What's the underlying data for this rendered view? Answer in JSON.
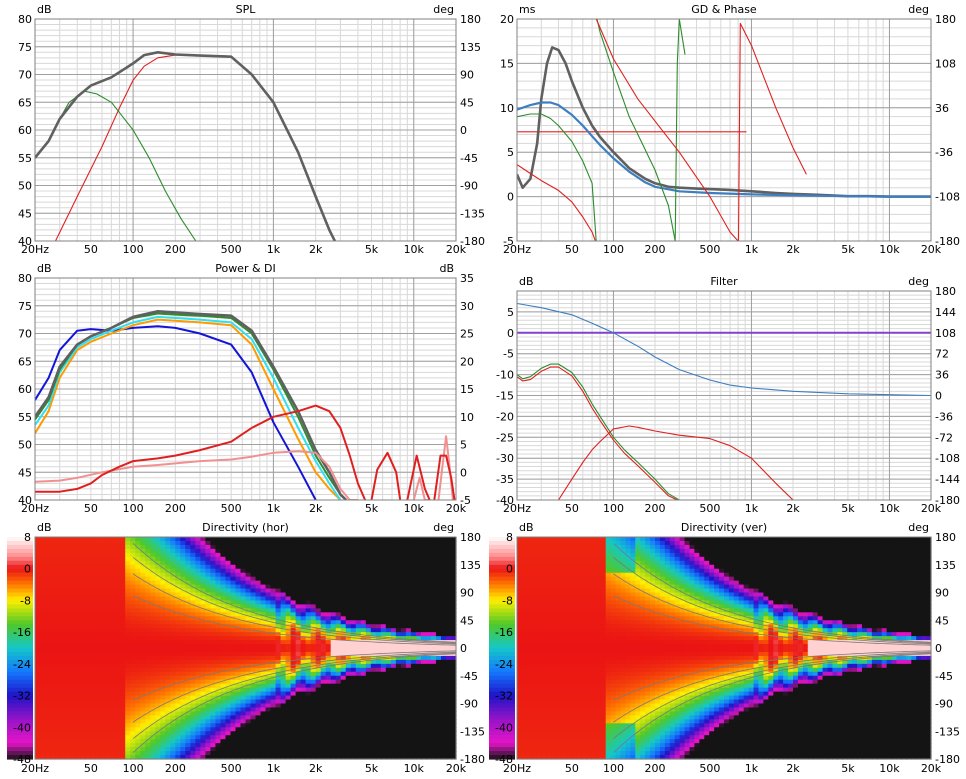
{
  "colors": {
    "background": "#ffffff",
    "grid_major": "#a0a0a0",
    "grid_minor": "#d8d8d8",
    "dark": "#606060",
    "red": "#e02020",
    "green": "#2e8b2e",
    "blue": "#1414d8",
    "steelblue": "#3c7ec0",
    "cyan": "#30e0f0",
    "orange": "#ff9a00",
    "salmon": "#f09090",
    "purple": "#8040d0"
  },
  "x_ticks": [
    "20Hz",
    "50",
    "100",
    "200",
    "500",
    "1k",
    "2k",
    "5k",
    "10k",
    "20k"
  ],
  "chart_data": [
    {
      "id": "spl",
      "type": "line",
      "title": "SPL",
      "ylabel": "dB",
      "y2label": "deg",
      "xlim": [
        20,
        20000
      ],
      "ylim": [
        40,
        80
      ],
      "y2lim": [
        -180,
        180
      ],
      "yticks": [
        "80",
        "75",
        "70",
        "65",
        "60",
        "55",
        "50",
        "45",
        "40"
      ],
      "y2ticks": [
        "180",
        "135",
        "90",
        "45",
        "0",
        "-45",
        "-90",
        "-135",
        "-180"
      ],
      "series": [
        {
          "color": "#e02020",
          "x": [
            28,
            40,
            60,
            80,
            100,
            120,
            150,
            200,
            300,
            500,
            700,
            1000,
            1500,
            2000,
            2500,
            3000
          ],
          "y": [
            40,
            48,
            57,
            64,
            69,
            71.5,
            73,
            73.5,
            73.5,
            73.3,
            70,
            65,
            56,
            48,
            42,
            38
          ]
        },
        {
          "color": "#2e8b2e",
          "x": [
            20,
            25,
            30,
            35,
            45,
            55,
            70,
            100,
            130,
            170,
            220,
            280
          ],
          "y": [
            55,
            58,
            62,
            65,
            67,
            66.5,
            65,
            60,
            55,
            49,
            44,
            40
          ]
        },
        {
          "color": "#606060",
          "x": [
            20,
            25,
            30,
            40,
            50,
            70,
            100,
            120,
            150,
            200,
            300,
            500,
            700,
            1000,
            1500,
            2000,
            2500,
            3000
          ],
          "y": [
            55,
            58,
            62,
            66,
            68,
            69.5,
            72,
            73.5,
            74,
            73.6,
            73.4,
            73.2,
            70,
            65,
            56,
            48,
            42,
            38
          ]
        }
      ]
    },
    {
      "id": "gd",
      "type": "line",
      "title": "GD & Phase",
      "ylabel": "ms",
      "y2label": "deg",
      "xlim": [
        20,
        20000
      ],
      "ylim": [
        -5,
        20
      ],
      "y2lim": [
        -180,
        180
      ],
      "yticks": [
        "20",
        "15",
        "10",
        "5",
        "0",
        "-5"
      ],
      "y2ticks": [
        "180",
        "108",
        "36",
        "-36",
        "-108",
        "-180"
      ],
      "series": [
        {
          "color": "#e02020",
          "x": [
            20,
            920
          ],
          "y": [
            7.3,
            7.3
          ]
        },
        {
          "color": "#606060",
          "x": [
            20,
            22,
            25,
            28,
            30,
            33,
            36,
            40,
            45,
            50,
            60,
            70,
            80,
            100,
            130,
            170,
            200,
            250,
            300,
            400,
            500,
            700,
            1000,
            1500,
            2000,
            3000,
            5000,
            7000,
            10000,
            20000
          ],
          "y": [
            2.5,
            1,
            2,
            6,
            11,
            15,
            16.8,
            16.5,
            15,
            13,
            10,
            8,
            6.7,
            5,
            3.2,
            2,
            1.5,
            1.1,
            1,
            0.9,
            0.85,
            0.75,
            0.6,
            0.4,
            0.3,
            0.2,
            0.05,
            0.05,
            0,
            0
          ]
        },
        {
          "color": "#3c7ec0",
          "x": [
            20,
            25,
            30,
            35,
            40,
            50,
            60,
            70,
            80,
            100,
            130,
            170,
            200,
            300,
            500,
            1000,
            2000,
            5000,
            10000,
            20000
          ],
          "y": [
            9.8,
            10.3,
            10.6,
            10.6,
            10.3,
            9.2,
            8,
            6.8,
            5.8,
            4.3,
            2.8,
            1.6,
            1.1,
            0.6,
            0.4,
            0.25,
            0.15,
            0.05,
            0,
            0
          ]
        },
        {
          "color": "#2e8b2e",
          "x": [
            20,
            25,
            30,
            35,
            40,
            50,
            60,
            70,
            75
          ],
          "y": [
            9,
            9.3,
            9.3,
            8.8,
            8,
            6.2,
            4,
            1.5,
            -5
          ]
        },
        {
          "color": "#2e8b2e",
          "x": [
            76,
            80,
            100,
            130,
            150,
            200,
            250,
            280
          ],
          "y": [
            20,
            18.5,
            14,
            9,
            7,
            3,
            -1,
            -5
          ]
        },
        {
          "color": "#2e8b2e",
          "x": [
            280,
            290,
            300,
            330
          ],
          "y": [
            -5,
            15,
            20,
            16
          ]
        },
        {
          "color": "#e02020",
          "x": [
            20,
            25,
            30,
            40,
            50,
            60,
            70,
            74
          ],
          "y": [
            3.6,
            2.6,
            1.8,
            0.7,
            -0.6,
            -2.3,
            -4,
            -5
          ]
        },
        {
          "color": "#e02020",
          "x": [
            75,
            80,
            100,
            150,
            200,
            300,
            500,
            700,
            800
          ],
          "y": [
            20,
            19,
            15.5,
            11,
            8.5,
            5,
            0,
            -4,
            -5
          ]
        },
        {
          "color": "#e02020",
          "x": [
            805,
            830,
            1000,
            1500,
            2000,
            2500
          ],
          "y": [
            -5,
            19.5,
            17,
            10,
            5.5,
            2.5
          ]
        }
      ]
    },
    {
      "id": "power",
      "type": "line",
      "title": "Power & DI",
      "ylabel": "dB",
      "y2label": "dB",
      "xlim": [
        20,
        20000
      ],
      "ylim": [
        40,
        80
      ],
      "y2lim": [
        -5,
        35
      ],
      "yticks": [
        "80",
        "75",
        "70",
        "65",
        "60",
        "55",
        "50",
        "45",
        "40"
      ],
      "y2ticks": [
        "35",
        "30",
        "25",
        "20",
        "15",
        "10",
        "5",
        "0",
        "-5"
      ],
      "series": [
        {
          "color": "#1414d8",
          "x": [
            20,
            25,
            30,
            40,
            50,
            70,
            100,
            150,
            200,
            300,
            500,
            700,
            1000,
            1500,
            2000
          ],
          "y": [
            58,
            62,
            67,
            70.5,
            70.8,
            70.5,
            71,
            71.3,
            71,
            70,
            68,
            63,
            54,
            46,
            40
          ]
        },
        {
          "color": "#ff9a00",
          "x": [
            20,
            25,
            30,
            40,
            50,
            70,
            100,
            150,
            200,
            300,
            500,
            700,
            1000,
            1500,
            2000,
            2500,
            3000
          ],
          "y": [
            52,
            56,
            62,
            67,
            68.5,
            70,
            71.5,
            72.5,
            72.3,
            72,
            71.5,
            68,
            60,
            51,
            45,
            42,
            40
          ]
        },
        {
          "color": "#30e0f0",
          "x": [
            20,
            25,
            30,
            40,
            50,
            70,
            100,
            150,
            200,
            300,
            500,
            700,
            1000,
            1500,
            2000,
            2500,
            3000
          ],
          "y": [
            53.5,
            57,
            63,
            67.5,
            69,
            70.5,
            72,
            73,
            72.8,
            72.5,
            72,
            69,
            62,
            53,
            47,
            43,
            40
          ]
        },
        {
          "color": "#2e8b2e",
          "x": [
            20,
            25,
            30,
            40,
            50,
            70,
            100,
            150,
            200,
            300,
            500,
            700,
            1000,
            1500,
            2000,
            2500,
            3000,
            3300
          ],
          "y": [
            54.5,
            58,
            63.5,
            68,
            69.5,
            71,
            72.8,
            73.6,
            73.4,
            73.2,
            72.8,
            70,
            63.5,
            55,
            48,
            44,
            41,
            40
          ]
        },
        {
          "color": "#606060",
          "x": [
            20,
            25,
            30,
            40,
            50,
            70,
            100,
            150,
            200,
            300,
            500,
            700,
            1000,
            1500,
            2000,
            2500,
            3000,
            3300
          ],
          "y": [
            55,
            58.5,
            64,
            68,
            69.5,
            71,
            73,
            74,
            73.8,
            73.5,
            73.2,
            70.5,
            64,
            56,
            49,
            45,
            41,
            40
          ]
        },
        {
          "color": "#f09090",
          "x": [
            20,
            30,
            40,
            60,
            100,
            150,
            200,
            300,
            500,
            700,
            1000,
            1500,
            2000,
            2500,
            3000,
            3500,
            4000
          ],
          "y": [
            43.3,
            43.5,
            44,
            45,
            46,
            46.3,
            46.6,
            47,
            47.3,
            47.8,
            48.5,
            48.8,
            48.5,
            46,
            42,
            40,
            40
          ]
        },
        {
          "color": "#f09090",
          "x": [
            10000,
            11000,
            12000,
            13000
          ],
          "y": [
            40,
            44,
            40,
            40
          ]
        },
        {
          "color": "#f09090",
          "x": [
            15000,
            16000,
            17000,
            18000,
            19000
          ],
          "y": [
            40,
            46,
            51.5,
            46,
            40
          ]
        },
        {
          "color": "#e02020",
          "x": [
            20,
            30,
            40,
            50,
            60,
            80,
            100,
            150,
            200,
            300,
            500,
            700,
            1000,
            1500,
            2000,
            2500,
            3000,
            3500,
            4000,
            4500
          ],
          "y": [
            41.5,
            41.5,
            42,
            43,
            44.5,
            46,
            47,
            47.5,
            48,
            49,
            50.5,
            53,
            55,
            56,
            57,
            56,
            53,
            48,
            43,
            40
          ]
        },
        {
          "color": "#e02020",
          "x": [
            5000,
            5500,
            6500,
            7500,
            8000
          ],
          "y": [
            40,
            45.5,
            48.5,
            45,
            40
          ]
        },
        {
          "color": "#e02020",
          "x": [
            9000,
            10500,
            12000,
            13000
          ],
          "y": [
            40,
            48,
            42,
            40
          ]
        },
        {
          "color": "#e02020",
          "x": [
            14000,
            15500,
            17000,
            18500,
            19500
          ],
          "y": [
            40,
            48,
            48,
            44,
            40
          ]
        }
      ]
    },
    {
      "id": "filter",
      "type": "line",
      "title": "Filter",
      "ylabel": "dB",
      "y2label": "deg",
      "xlim": [
        20,
        20000
      ],
      "ylim": [
        -40,
        10
      ],
      "y2lim": [
        -180,
        180
      ],
      "yticks": [
        "",
        "5",
        "0",
        "-5",
        "-10",
        "-15",
        "-20",
        "-25",
        "-30",
        "-35",
        "-40"
      ],
      "y2ticks": [
        "180",
        "144",
        "108",
        "72",
        "36",
        "0",
        "-36",
        "-72",
        "-108",
        "-144",
        "-180"
      ],
      "series": [
        {
          "color": "#8040d0",
          "x": [
            20,
            20000
          ],
          "y": [
            0,
            0
          ]
        },
        {
          "color": "#3c7ec0",
          "x": [
            20,
            30,
            50,
            70,
            100,
            150,
            200,
            300,
            500,
            700,
            1000,
            2000,
            5000,
            10000,
            20000
          ],
          "y": [
            7,
            6,
            4.3,
            2.3,
            0,
            -3.2,
            -5.8,
            -8.8,
            -11.3,
            -12.5,
            -13.2,
            -14,
            -14.6,
            -14.8,
            -15
          ]
        },
        {
          "color": "#2e8b2e",
          "x": [
            20,
            22,
            25,
            30,
            35,
            40,
            50,
            60,
            70,
            80,
            100,
            120,
            150,
            200,
            250,
            300
          ],
          "y": [
            -10,
            -11,
            -10.5,
            -8.5,
            -7.5,
            -7.5,
            -9.5,
            -13,
            -17,
            -20,
            -25,
            -28,
            -31,
            -35,
            -38.5,
            -40
          ]
        },
        {
          "color": "#e02020",
          "x": [
            20,
            22,
            25,
            30,
            35,
            40,
            50,
            60,
            70,
            80,
            100,
            120,
            150,
            200,
            250,
            290
          ],
          "y": [
            -10.5,
            -11.5,
            -11.2,
            -9.2,
            -8.2,
            -8.2,
            -10.3,
            -14,
            -18,
            -21,
            -25.7,
            -28.8,
            -31.8,
            -35.8,
            -39,
            -40
          ]
        },
        {
          "color": "#e02020",
          "x": [
            40,
            50,
            60,
            70,
            80,
            100,
            130,
            150,
            200,
            300,
            500,
            700,
            1000,
            1500,
            2000
          ],
          "y": [
            -40,
            -35,
            -31,
            -28,
            -26,
            -23,
            -22.3,
            -22.6,
            -23.5,
            -24.5,
            -25.3,
            -27,
            -30,
            -36,
            -40
          ]
        }
      ]
    },
    {
      "id": "dirh",
      "type": "heatmap",
      "title": "Directivity (hor)",
      "ylabel": "dB",
      "y2label": "deg",
      "xlim": [
        20,
        20000
      ],
      "ylim": [
        -180,
        180
      ],
      "colorbar_ticks": [
        "8",
        "0",
        "-8",
        "-16",
        "-24",
        "-32",
        "-40",
        "-48"
      ],
      "y2ticks": [
        "180",
        "135",
        "90",
        "45",
        "0",
        "-45",
        "-90",
        "-135",
        "-180"
      ]
    },
    {
      "id": "dirv",
      "type": "heatmap",
      "title": "Directivity (ver)",
      "ylabel": "dB",
      "y2label": "deg",
      "xlim": [
        20,
        20000
      ],
      "ylim": [
        -180,
        180
      ],
      "colorbar_ticks": [
        "8",
        "0",
        "-8",
        "-16",
        "-24",
        "-32",
        "-40",
        "-48"
      ],
      "y2ticks": [
        "180",
        "135",
        "90",
        "45",
        "0",
        "-45",
        "-90",
        "-135",
        "-180"
      ]
    }
  ]
}
